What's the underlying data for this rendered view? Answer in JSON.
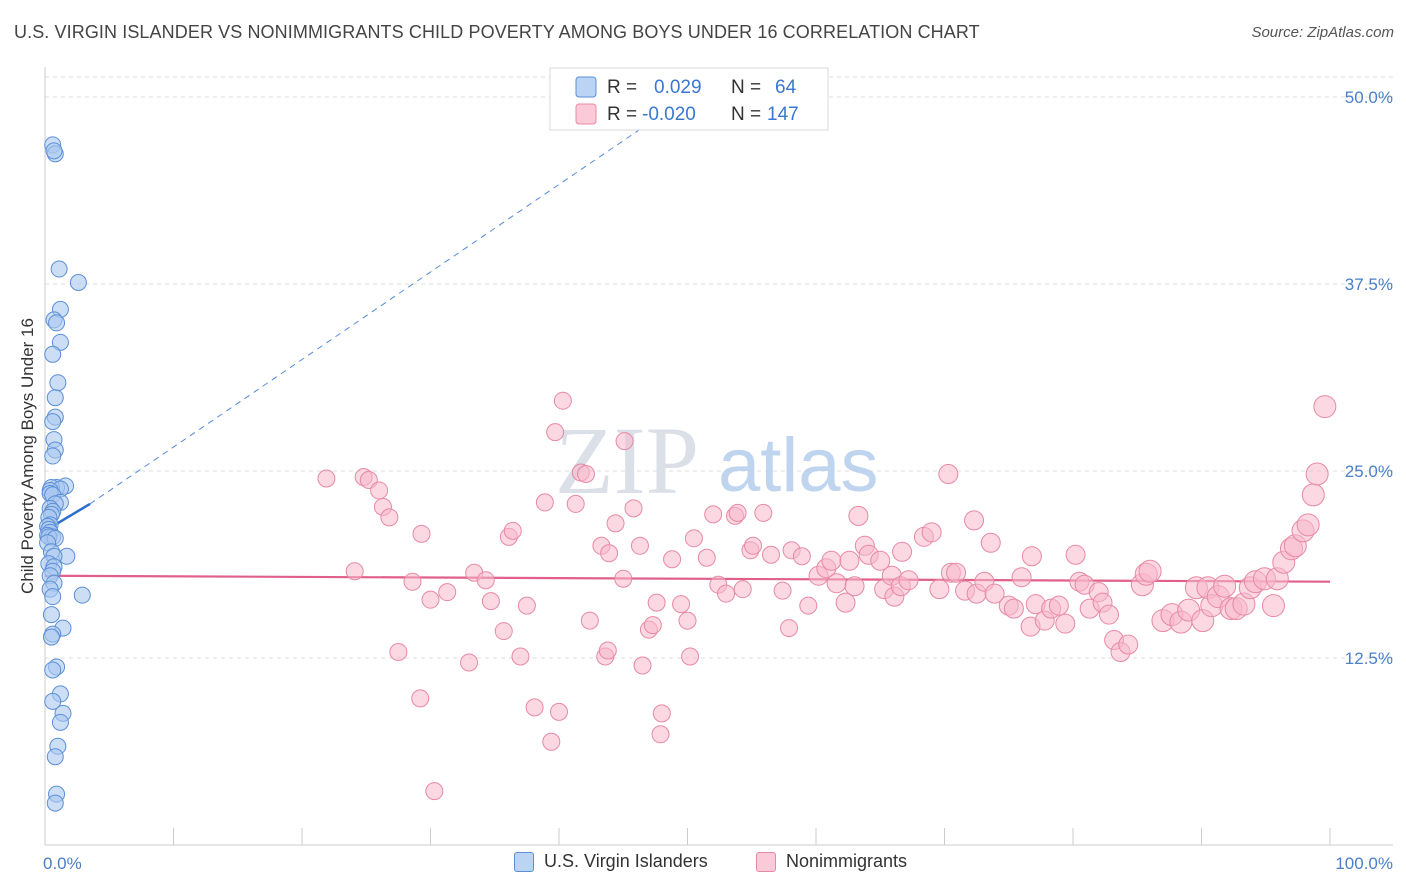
{
  "title": "U.S. VIRGIN ISLANDER VS NONIMMIGRANTS CHILD POVERTY AMONG BOYS UNDER 16 CORRELATION CHART",
  "source": "Source: ZipAtlas.com",
  "watermark": {
    "zip": "ZIP",
    "atlas": "atlas"
  },
  "colors": {
    "blue_fill": "#aac8f0",
    "blue_stroke": "#5b8fd6",
    "blue_line": "#2a6fd0",
    "pink_fill": "#f7b8cb",
    "pink_stroke": "#e889a6",
    "pink_line": "#e0608a",
    "tick_text": "#4a7fc9"
  },
  "legend_top": {
    "r_label": "R =",
    "n_label": "N =",
    "rows": [
      {
        "series": "U.S. Virgin Islanders",
        "r_value": "0.029",
        "n_value": "64"
      },
      {
        "series": "Nonimmigrants",
        "r_value": "-0.020",
        "n_value": "147"
      }
    ]
  },
  "chart_data": {
    "type": "scatter",
    "title": "U.S. VIRGIN ISLANDER VS NONIMMIGRANTS CHILD POVERTY AMONG BOYS UNDER 16 CORRELATION CHART",
    "xlabel": "",
    "ylabel": "Child Poverty Among Boys Under 16",
    "xlim": [
      0,
      100
    ],
    "ylim": [
      0,
      51.5
    ],
    "x_tick_labels": [
      {
        "value": 0,
        "label": "0.0%"
      },
      {
        "value": 100,
        "label": "100.0%"
      }
    ],
    "y_tick_labels": [
      {
        "value": 12.5,
        "label": "12.5%"
      },
      {
        "value": 25,
        "label": "25.0%"
      },
      {
        "value": 37.5,
        "label": "37.5%"
      },
      {
        "value": 50,
        "label": "50.0%"
      }
    ],
    "grid": true,
    "legend_position": "bottom",
    "series": [
      {
        "name": "U.S. Virgin Islanders",
        "r": 0.029,
        "n": 64,
        "trend": {
          "x": [
            0,
            3.5
          ],
          "y": [
            21.0,
            22.8
          ],
          "extension_to": [
            50,
            50
          ]
        },
        "points": [
          [
            0.6,
            46.8
          ],
          [
            0.8,
            46.2
          ],
          [
            0.7,
            46.4
          ],
          [
            1.1,
            38.5
          ],
          [
            2.6,
            37.6
          ],
          [
            1.2,
            35.8
          ],
          [
            0.7,
            35.1
          ],
          [
            0.9,
            34.9
          ],
          [
            1.2,
            33.6
          ],
          [
            0.6,
            32.8
          ],
          [
            1.0,
            30.9
          ],
          [
            0.8,
            29.9
          ],
          [
            0.8,
            28.6
          ],
          [
            0.6,
            28.3
          ],
          [
            0.7,
            27.1
          ],
          [
            0.8,
            26.4
          ],
          [
            0.6,
            26.0
          ],
          [
            1.6,
            24.0
          ],
          [
            0.9,
            23.9
          ],
          [
            0.5,
            23.9
          ],
          [
            1.2,
            23.8
          ],
          [
            0.4,
            23.7
          ],
          [
            0.4,
            23.5
          ],
          [
            0.6,
            23.4
          ],
          [
            1.2,
            22.9
          ],
          [
            0.8,
            22.8
          ],
          [
            0.4,
            22.5
          ],
          [
            0.6,
            22.3
          ],
          [
            0.5,
            22.1
          ],
          [
            0.3,
            21.9
          ],
          [
            0.4,
            21.4
          ],
          [
            0.2,
            21.3
          ],
          [
            0.3,
            21.1
          ],
          [
            0.4,
            20.9
          ],
          [
            0.2,
            20.7
          ],
          [
            0.6,
            20.6
          ],
          [
            0.3,
            20.6
          ],
          [
            0.8,
            20.5
          ],
          [
            0.2,
            20.2
          ],
          [
            0.5,
            19.6
          ],
          [
            1.7,
            19.3
          ],
          [
            0.7,
            19.3
          ],
          [
            0.3,
            18.8
          ],
          [
            0.7,
            18.6
          ],
          [
            0.6,
            18.3
          ],
          [
            0.4,
            18.0
          ],
          [
            0.7,
            17.5
          ],
          [
            0.4,
            17.1
          ],
          [
            2.9,
            16.7
          ],
          [
            0.6,
            16.6
          ],
          [
            0.5,
            15.4
          ],
          [
            1.4,
            14.5
          ],
          [
            0.6,
            14.1
          ],
          [
            0.5,
            13.9
          ],
          [
            0.9,
            11.9
          ],
          [
            0.6,
            11.7
          ],
          [
            1.2,
            10.1
          ],
          [
            0.6,
            9.6
          ],
          [
            1.4,
            8.8
          ],
          [
            1.2,
            8.2
          ],
          [
            1.0,
            6.6
          ],
          [
            0.8,
            5.9
          ],
          [
            0.9,
            3.4
          ],
          [
            0.8,
            2.8
          ]
        ]
      },
      {
        "name": "Nonimmigrants",
        "r": -0.02,
        "n": 147,
        "trend": {
          "x": [
            0,
            100
          ],
          "y": [
            18.0,
            17.6
          ]
        },
        "points": [
          [
            21.9,
            24.5
          ],
          [
            24.8,
            24.6
          ],
          [
            25.2,
            24.4
          ],
          [
            26.0,
            23.7
          ],
          [
            26.3,
            22.6
          ],
          [
            26.8,
            21.9
          ],
          [
            29.3,
            20.8
          ],
          [
            24.1,
            18.3
          ],
          [
            27.5,
            12.9
          ],
          [
            28.6,
            17.6
          ],
          [
            29.2,
            9.8
          ],
          [
            30.0,
            16.4
          ],
          [
            30.3,
            3.6
          ],
          [
            31.3,
            16.9
          ],
          [
            33.0,
            12.2
          ],
          [
            33.4,
            18.2
          ],
          [
            34.3,
            17.7
          ],
          [
            34.7,
            16.3
          ],
          [
            35.7,
            14.3
          ],
          [
            36.1,
            20.6
          ],
          [
            36.4,
            21.0
          ],
          [
            37.0,
            12.6
          ],
          [
            37.5,
            16.0
          ],
          [
            38.1,
            9.2
          ],
          [
            38.9,
            22.9
          ],
          [
            39.4,
            6.9
          ],
          [
            39.7,
            27.6
          ],
          [
            40.0,
            8.9
          ],
          [
            40.3,
            29.7
          ],
          [
            41.3,
            22.8
          ],
          [
            41.7,
            24.9
          ],
          [
            42.1,
            24.8
          ],
          [
            42.4,
            15.0
          ],
          [
            43.3,
            20.0
          ],
          [
            43.6,
            12.6
          ],
          [
            43.8,
            13.0
          ],
          [
            43.9,
            19.5
          ],
          [
            44.4,
            21.5
          ],
          [
            45.0,
            17.8
          ],
          [
            45.1,
            27.0
          ],
          [
            45.8,
            22.5
          ],
          [
            46.3,
            20.0
          ],
          [
            46.5,
            12.0
          ],
          [
            47.0,
            14.4
          ],
          [
            47.3,
            14.7
          ],
          [
            47.6,
            16.2
          ],
          [
            47.9,
            7.4
          ],
          [
            48.0,
            8.8
          ],
          [
            48.8,
            19.1
          ],
          [
            49.5,
            16.1
          ],
          [
            50.0,
            15.0
          ],
          [
            50.2,
            12.6
          ],
          [
            51.5,
            19.2
          ],
          [
            52.0,
            22.1
          ],
          [
            52.4,
            17.4
          ],
          [
            53.0,
            16.8
          ],
          [
            53.7,
            22.0
          ],
          [
            53.9,
            22.2
          ],
          [
            54.3,
            17.1
          ],
          [
            54.9,
            19.7
          ],
          [
            55.1,
            20.0
          ],
          [
            55.9,
            22.2
          ],
          [
            56.5,
            19.4
          ],
          [
            57.4,
            17.0
          ],
          [
            57.9,
            14.5
          ],
          [
            58.1,
            19.7
          ],
          [
            58.9,
            19.3
          ],
          [
            59.4,
            16.0
          ],
          [
            60.2,
            18.0
          ],
          [
            60.8,
            18.5
          ],
          [
            61.2,
            19.0
          ],
          [
            61.6,
            17.5
          ],
          [
            62.3,
            16.2
          ],
          [
            62.6,
            19.0
          ],
          [
            63.0,
            17.3
          ],
          [
            63.3,
            22.0
          ],
          [
            63.8,
            20.0
          ],
          [
            64.1,
            19.4
          ],
          [
            65.0,
            19.0
          ],
          [
            65.3,
            17.1
          ],
          [
            65.9,
            18.0
          ],
          [
            66.1,
            16.6
          ],
          [
            66.6,
            17.3
          ],
          [
            66.7,
            19.6
          ],
          [
            67.2,
            17.7
          ],
          [
            68.4,
            20.6
          ],
          [
            69.0,
            20.9
          ],
          [
            69.6,
            17.1
          ],
          [
            70.3,
            24.8
          ],
          [
            70.5,
            18.2
          ],
          [
            70.9,
            18.2
          ],
          [
            71.6,
            17.0
          ],
          [
            72.3,
            21.7
          ],
          [
            72.5,
            16.8
          ],
          [
            73.1,
            17.6
          ],
          [
            73.6,
            20.2
          ],
          [
            73.9,
            16.8
          ],
          [
            75.0,
            16.0
          ],
          [
            75.4,
            15.8
          ],
          [
            76.0,
            17.9
          ],
          [
            76.7,
            14.6
          ],
          [
            76.8,
            19.3
          ],
          [
            77.1,
            16.1
          ],
          [
            77.8,
            15.0
          ],
          [
            78.3,
            15.8
          ],
          [
            78.9,
            16.0
          ],
          [
            79.4,
            14.8
          ],
          [
            80.2,
            19.4
          ],
          [
            80.5,
            17.6
          ],
          [
            80.9,
            17.4
          ],
          [
            81.3,
            15.8
          ],
          [
            82.0,
            16.9
          ],
          [
            82.3,
            16.2
          ],
          [
            82.8,
            15.4
          ],
          [
            83.2,
            13.7
          ],
          [
            83.7,
            12.9
          ],
          [
            84.3,
            13.4
          ],
          [
            85.4,
            17.4
          ],
          [
            85.7,
            18.1
          ],
          [
            86.0,
            18.3
          ],
          [
            87.0,
            15.0
          ],
          [
            87.7,
            15.4
          ],
          [
            88.4,
            14.9
          ],
          [
            89.0,
            15.7
          ],
          [
            89.6,
            17.2
          ],
          [
            90.1,
            15.0
          ],
          [
            90.5,
            17.2
          ],
          [
            90.8,
            16.0
          ],
          [
            91.3,
            16.6
          ],
          [
            91.8,
            17.3
          ],
          [
            92.3,
            15.8
          ],
          [
            92.7,
            15.8
          ],
          [
            93.3,
            16.1
          ],
          [
            93.8,
            17.2
          ],
          [
            94.2,
            17.6
          ],
          [
            94.9,
            17.8
          ],
          [
            95.6,
            16.0
          ],
          [
            95.9,
            17.8
          ],
          [
            96.4,
            18.9
          ],
          [
            97.0,
            19.8
          ],
          [
            97.3,
            20.0
          ],
          [
            97.9,
            21.0
          ],
          [
            98.3,
            21.4
          ],
          [
            98.7,
            23.4
          ],
          [
            99.0,
            24.8
          ],
          [
            99.6,
            29.3
          ],
          [
            50.5,
            20.5
          ]
        ]
      }
    ]
  },
  "legend_bottom": [
    {
      "label": "U.S. Virgin Islanders"
    },
    {
      "label": "Nonimmigrants"
    }
  ]
}
